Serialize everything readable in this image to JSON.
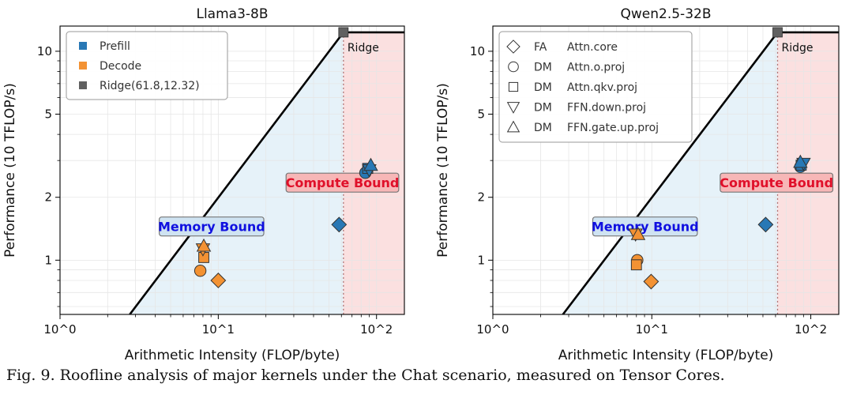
{
  "caption": "Fig. 9. Roofline analysis of major kernels under the Chat scenario, measured on Tensor Cores.",
  "colors": {
    "prefill": "#2878b5",
    "decode": "#f39233",
    "ridge": "#606060",
    "memory_region": "#e6f2f9",
    "compute_region": "#fbe0e0",
    "memory_label_box": "#cfe3f2",
    "memory_label_text": "#1010e0",
    "compute_label_box": "#f7b7b7",
    "compute_label_text": "#e0102a"
  },
  "chart_data": [
    {
      "type": "scatter",
      "title": "Llama3-8B",
      "xlabel": "Arithmetic Intensity (FLOP/byte)",
      "ylabel": "Performance (10 TFLOP/s)",
      "xscale": "log",
      "yscale": "log",
      "xlim": [
        1,
        150
      ],
      "ylim": [
        0.55,
        13.2
      ],
      "x_ticks": [
        {
          "value": 1,
          "label": "10^0"
        },
        {
          "value": 10,
          "label": "10^1"
        },
        {
          "value": 100,
          "label": "10^2"
        }
      ],
      "y_ticks": [
        {
          "value": 1,
          "label": "1"
        },
        {
          "value": 2,
          "label": "2"
        },
        {
          "value": 5,
          "label": "5"
        },
        {
          "value": 10,
          "label": "10"
        }
      ],
      "grid": true,
      "roofline": {
        "ridge_x": 61.8,
        "ridge_y": 12.32,
        "ridge_label": "Ridge"
      },
      "regions": {
        "memory_label": "Memory Bound",
        "compute_label": "Compute Bound"
      },
      "legend": {
        "placement": "top-left",
        "style": "color",
        "entries": [
          {
            "label": "Prefill",
            "series": "prefill"
          },
          {
            "label": "Decode",
            "series": "decode"
          },
          {
            "label": "Ridge(61.8,12.32)",
            "series": "ridge"
          }
        ]
      },
      "points": [
        {
          "series": "prefill",
          "kernel": "FA",
          "marker": "diamond",
          "x": 58,
          "y": 1.48
        },
        {
          "series": "prefill",
          "kernel": "Attn.o.proj",
          "marker": "circle",
          "x": 85,
          "y": 2.62
        },
        {
          "series": "prefill",
          "kernel": "Attn.qkv.proj",
          "marker": "square",
          "x": 88,
          "y": 2.75
        },
        {
          "series": "prefill",
          "kernel": "FFN.down.proj",
          "marker": "triangle-down",
          "x": 90,
          "y": 2.7
        },
        {
          "series": "prefill",
          "kernel": "FFN.gate.up.proj",
          "marker": "triangle-up",
          "x": 92,
          "y": 2.85
        },
        {
          "series": "decode",
          "kernel": "FA",
          "marker": "diamond",
          "x": 10,
          "y": 0.8
        },
        {
          "series": "decode",
          "kernel": "Attn.o.proj",
          "marker": "circle",
          "x": 7.7,
          "y": 0.89
        },
        {
          "series": "decode",
          "kernel": "Attn.qkv.proj",
          "marker": "square",
          "x": 8.1,
          "y": 1.03
        },
        {
          "series": "decode",
          "kernel": "FFN.down.proj",
          "marker": "triangle-down",
          "x": 8.0,
          "y": 1.13
        },
        {
          "series": "decode",
          "kernel": "FFN.gate.up.proj",
          "marker": "triangle-up",
          "x": 8.1,
          "y": 1.17
        }
      ]
    },
    {
      "type": "scatter",
      "title": "Qwen2.5-32B",
      "xlabel": "Arithmetic Intensity (FLOP/byte)",
      "ylabel": "Performance (10 TFLOP/s)",
      "xscale": "log",
      "yscale": "log",
      "xlim": [
        1,
        150
      ],
      "ylim": [
        0.55,
        13.2
      ],
      "x_ticks": [
        {
          "value": 1,
          "label": "10^0"
        },
        {
          "value": 10,
          "label": "10^1"
        },
        {
          "value": 100,
          "label": "10^2"
        }
      ],
      "y_ticks": [
        {
          "value": 1,
          "label": "1"
        },
        {
          "value": 2,
          "label": "2"
        },
        {
          "value": 5,
          "label": "5"
        },
        {
          "value": 10,
          "label": "10"
        }
      ],
      "grid": true,
      "roofline": {
        "ridge_x": 61.8,
        "ridge_y": 12.32,
        "ridge_label": "Ridge"
      },
      "regions": {
        "memory_label": "Memory Bound",
        "compute_label": "Compute Bound"
      },
      "legend": {
        "placement": "top-left",
        "style": "marker",
        "entries": [
          {
            "marker": "diamond",
            "label": "FA",
            "sub": "Attn.core"
          },
          {
            "marker": "circle",
            "label": "DM",
            "sub": "Attn.o.proj"
          },
          {
            "marker": "square",
            "label": "DM",
            "sub": "Attn.qkv.proj"
          },
          {
            "marker": "triangle-down",
            "label": "DM",
            "sub": "FFN.down.proj"
          },
          {
            "marker": "triangle-up",
            "label": "DM",
            "sub": "FFN.gate.up.proj"
          }
        ]
      },
      "points": [
        {
          "series": "prefill",
          "kernel": "FA",
          "marker": "diamond",
          "x": 52,
          "y": 1.48
        },
        {
          "series": "prefill",
          "kernel": "Attn.o.proj",
          "marker": "circle",
          "x": 86,
          "y": 2.8
        },
        {
          "series": "prefill",
          "kernel": "Attn.qkv.proj",
          "marker": "square",
          "x": 87,
          "y": 2.85
        },
        {
          "series": "prefill",
          "kernel": "FFN.down.proj",
          "marker": "triangle-down",
          "x": 90,
          "y": 2.9
        },
        {
          "series": "prefill",
          "kernel": "FFN.gate.up.proj",
          "marker": "triangle-up",
          "x": 86,
          "y": 2.95
        },
        {
          "series": "decode",
          "kernel": "FA",
          "marker": "diamond",
          "x": 9.9,
          "y": 0.79
        },
        {
          "series": "decode",
          "kernel": "Attn.o.proj",
          "marker": "circle",
          "x": 8.1,
          "y": 1.0
        },
        {
          "series": "decode",
          "kernel": "Attn.qkv.proj",
          "marker": "square",
          "x": 8.0,
          "y": 0.95
        },
        {
          "series": "decode",
          "kernel": "FFN.down.proj",
          "marker": "triangle-down",
          "x": 7.9,
          "y": 1.33
        },
        {
          "series": "decode",
          "kernel": "FFN.gate.up.proj",
          "marker": "triangle-up",
          "x": 8.2,
          "y": 1.33
        }
      ]
    }
  ]
}
